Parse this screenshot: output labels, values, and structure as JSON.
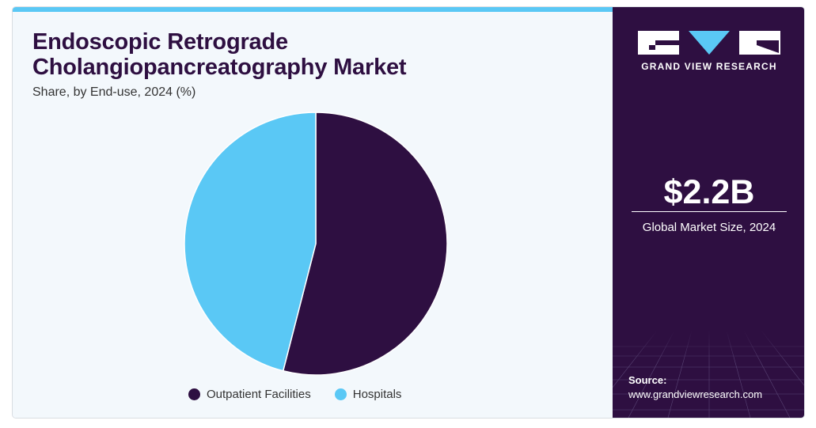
{
  "chart_data": {
    "type": "pie",
    "title": "Endoscopic Retrograde Cholangiopancreatography Market",
    "subtitle": "Share, by End-use, 2024 (%)",
    "categories": [
      "Outpatient Facilities",
      "Hospitals"
    ],
    "values": [
      54,
      46
    ],
    "colors": [
      "#2e0f41",
      "#5ac8f5"
    ],
    "legend_position": "bottom"
  },
  "sidebar": {
    "brand": "GRAND VIEW RESEARCH",
    "market_size": "$2.2B",
    "market_size_label": "Global Market Size, 2024",
    "source_label": "Source:",
    "source_url": "www.grandviewresearch.com"
  },
  "colors": {
    "accent": "#5ac8f5",
    "primary": "#2e0f41",
    "background": "#f3f8fc"
  }
}
